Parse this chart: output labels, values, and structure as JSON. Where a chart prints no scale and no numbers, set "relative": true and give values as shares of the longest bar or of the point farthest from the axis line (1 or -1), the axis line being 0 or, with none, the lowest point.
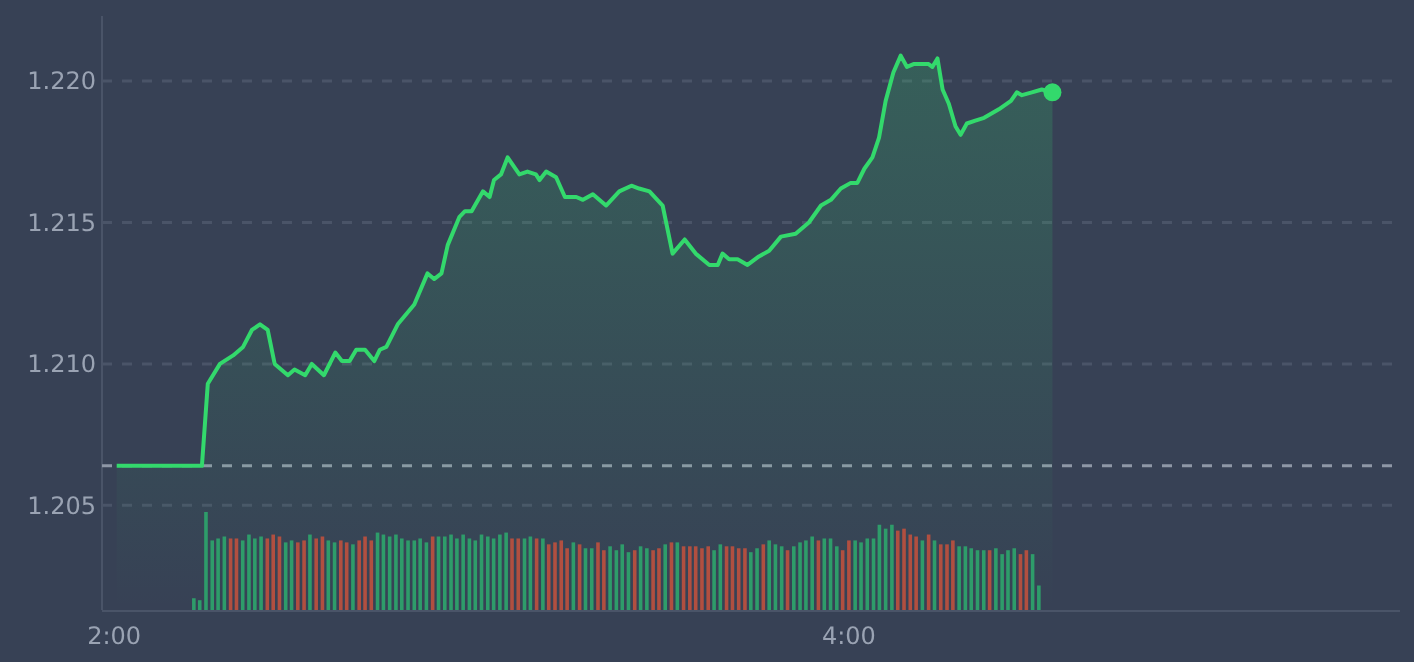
{
  "chart_data": [
    {
      "type": "area",
      "xlim": [
        1.967,
        5.5
      ],
      "ylim": [
        1.2013,
        1.2223
      ],
      "yticks": [
        {
          "value": 1.205,
          "label": "1.205"
        },
        {
          "value": 1.21,
          "label": "1.210"
        },
        {
          "value": 1.215,
          "label": "1.215"
        },
        {
          "value": 1.22,
          "label": "1.220"
        }
      ],
      "grid": "y",
      "tick_labels": "y",
      "ref_lines": [
        {
          "axis": "y",
          "value": 1.2064,
          "color": "#8e97a6",
          "line_style": "dashed"
        }
      ],
      "series": [
        {
          "type": "area",
          "color": "#33d96c",
          "x": [
            2.007,
            2.239,
            2.255,
            2.288,
            2.324,
            2.351,
            2.375,
            2.397,
            2.418,
            2.437,
            2.473,
            2.491,
            2.52,
            2.538,
            2.571,
            2.602,
            2.62,
            2.641,
            2.659,
            2.683,
            2.708,
            2.723,
            2.741,
            2.772,
            2.817,
            2.853,
            2.871,
            2.891,
            2.908,
            2.94,
            2.955,
            2.973,
            3.004,
            3.022,
            3.034,
            3.053,
            3.071,
            3.103,
            3.125,
            3.148,
            3.158,
            3.176,
            3.203,
            3.227,
            3.258,
            3.276,
            3.303,
            3.339,
            3.375,
            3.408,
            3.429,
            3.457,
            3.493,
            3.52,
            3.553,
            3.583,
            3.62,
            3.643,
            3.656,
            3.674,
            3.697,
            3.724,
            3.755,
            3.783,
            3.815,
            3.855,
            3.891,
            3.924,
            3.951,
            3.978,
            4.005,
            4.023,
            4.042,
            4.064,
            4.082,
            4.1,
            4.121,
            4.141,
            4.158,
            4.176,
            4.2,
            4.217,
            4.227,
            4.241,
            4.255,
            4.272,
            4.29,
            4.304,
            4.321,
            4.344,
            4.368,
            4.408,
            4.441,
            4.457,
            4.471,
            4.498,
            4.525,
            4.554
          ],
          "values": [
            1.2064,
            1.2064,
            1.2093,
            1.21,
            1.2103,
            1.2106,
            1.2112,
            1.2114,
            1.2112,
            1.21,
            1.2096,
            1.2098,
            1.2096,
            1.21,
            1.2096,
            1.2104,
            1.2101,
            1.2101,
            1.2105,
            1.2105,
            1.2101,
            1.2105,
            1.2106,
            1.2114,
            1.2121,
            1.2132,
            1.213,
            1.2132,
            1.2142,
            1.2152,
            1.2154,
            1.2154,
            1.2161,
            1.2159,
            1.2165,
            1.2167,
            1.2173,
            1.2167,
            1.2168,
            1.2167,
            1.2165,
            1.2168,
            1.2166,
            1.2159,
            1.2159,
            1.2158,
            1.216,
            1.2156,
            1.2161,
            1.2163,
            1.2162,
            1.2161,
            1.2156,
            1.2139,
            1.2144,
            1.2139,
            1.2135,
            1.2135,
            1.2139,
            1.2137,
            1.2137,
            1.2135,
            1.2138,
            1.214,
            1.2145,
            1.2146,
            1.215,
            1.2156,
            1.2158,
            1.2162,
            1.2164,
            1.2164,
            1.2169,
            1.2173,
            1.218,
            1.2193,
            1.2203,
            1.2209,
            1.2205,
            1.2206,
            1.2206,
            1.2206,
            1.2205,
            1.2208,
            1.2197,
            1.2192,
            1.2184,
            1.2181,
            1.2185,
            1.2186,
            1.2187,
            1.219,
            1.2193,
            1.2196,
            1.2195,
            1.2196,
            1.2197,
            1.2196
          ]
        },
        {
          "type": "scatter",
          "color": "#33d96c",
          "marker": "circle",
          "x": [
            4.554
          ],
          "values": [
            1.2196
          ]
        }
      ]
    },
    {
      "type": "bar",
      "relative": true,
      "xlim": [
        1.967,
        5.5
      ],
      "xticks": [
        {
          "value": 2,
          "label": "2:00"
        },
        {
          "value": 4,
          "label": "4:00"
        }
      ],
      "tick_labels": "x",
      "x": [
        2.217,
        2.233,
        2.25,
        2.267,
        2.283,
        2.3,
        2.317,
        2.333,
        2.35,
        2.367,
        2.383,
        2.4,
        2.417,
        2.433,
        2.45,
        2.467,
        2.483,
        2.5,
        2.517,
        2.533,
        2.55,
        2.567,
        2.583,
        2.6,
        2.617,
        2.633,
        2.65,
        2.667,
        2.683,
        2.7,
        2.717,
        2.733,
        2.75,
        2.767,
        2.783,
        2.8,
        2.817,
        2.833,
        2.85,
        2.867,
        2.883,
        2.9,
        2.917,
        2.933,
        2.95,
        2.967,
        2.983,
        3,
        3.017,
        3.033,
        3.05,
        3.067,
        3.083,
        3.1,
        3.117,
        3.133,
        3.15,
        3.167,
        3.183,
        3.2,
        3.217,
        3.233,
        3.25,
        3.267,
        3.283,
        3.3,
        3.317,
        3.333,
        3.35,
        3.367,
        3.383,
        3.4,
        3.417,
        3.433,
        3.45,
        3.467,
        3.483,
        3.5,
        3.517,
        3.533,
        3.55,
        3.567,
        3.583,
        3.6,
        3.617,
        3.633,
        3.65,
        3.667,
        3.683,
        3.7,
        3.717,
        3.733,
        3.75,
        3.767,
        3.783,
        3.8,
        3.817,
        3.833,
        3.85,
        3.867,
        3.883,
        3.9,
        3.917,
        3.933,
        3.95,
        3.967,
        3.983,
        4,
        4.017,
        4.033,
        4.05,
        4.067,
        4.083,
        4.1,
        4.117,
        4.133,
        4.15,
        4.167,
        4.183,
        4.2,
        4.217,
        4.233,
        4.25,
        4.267,
        4.283,
        4.3,
        4.317,
        4.333,
        4.35,
        4.367,
        4.383,
        4.4,
        4.417,
        4.433,
        4.45,
        4.467,
        4.483,
        4.5,
        4.517
      ],
      "values": [
        0.12,
        0.1,
        1,
        0.71,
        0.73,
        0.75,
        0.73,
        0.73,
        0.71,
        0.77,
        0.73,
        0.75,
        0.73,
        0.77,
        0.75,
        0.69,
        0.71,
        0.69,
        0.71,
        0.77,
        0.73,
        0.75,
        0.71,
        0.69,
        0.71,
        0.69,
        0.67,
        0.71,
        0.75,
        0.71,
        0.79,
        0.77,
        0.75,
        0.77,
        0.73,
        0.71,
        0.71,
        0.73,
        0.69,
        0.75,
        0.75,
        0.75,
        0.77,
        0.73,
        0.77,
        0.73,
        0.71,
        0.77,
        0.75,
        0.73,
        0.77,
        0.79,
        0.73,
        0.73,
        0.73,
        0.75,
        0.73,
        0.73,
        0.67,
        0.69,
        0.71,
        0.63,
        0.69,
        0.67,
        0.63,
        0.63,
        0.69,
        0.61,
        0.65,
        0.61,
        0.67,
        0.59,
        0.61,
        0.65,
        0.63,
        0.61,
        0.63,
        0.67,
        0.69,
        0.69,
        0.65,
        0.65,
        0.65,
        0.63,
        0.65,
        0.61,
        0.67,
        0.65,
        0.65,
        0.63,
        0.63,
        0.59,
        0.63,
        0.67,
        0.71,
        0.67,
        0.65,
        0.61,
        0.65,
        0.69,
        0.71,
        0.75,
        0.71,
        0.73,
        0.73,
        0.65,
        0.61,
        0.71,
        0.71,
        0.69,
        0.73,
        0.73,
        0.87,
        0.83,
        0.87,
        0.81,
        0.83,
        0.77,
        0.75,
        0.71,
        0.77,
        0.71,
        0.67,
        0.67,
        0.71,
        0.65,
        0.65,
        0.63,
        0.61,
        0.61,
        0.61,
        0.63,
        0.57,
        0.61,
        0.63,
        0.57,
        0.61,
        0.57,
        0.25
      ],
      "colors": [
        "#2e9c6a",
        "#2e9c6a",
        "#2e9c6a",
        "#2e9c6a",
        "#2e9c6a",
        "#2e9c6a",
        "#b14f40",
        "#b14f40",
        "#2e9c6a",
        "#2e9c6a",
        "#2e9c6a",
        "#2e9c6a",
        "#b14f40",
        "#b14f40",
        "#b14f40",
        "#2e9c6a",
        "#2e9c6a",
        "#b14f40",
        "#b14f40",
        "#2e9c6a",
        "#b14f40",
        "#b14f40",
        "#2e9c6a",
        "#2e9c6a",
        "#b14f40",
        "#b14f40",
        "#2e9c6a",
        "#b14f40",
        "#b14f40",
        "#b14f40",
        "#2e9c6a",
        "#2e9c6a",
        "#2e9c6a",
        "#2e9c6a",
        "#2e9c6a",
        "#2e9c6a",
        "#2e9c6a",
        "#2e9c6a",
        "#2e9c6a",
        "#b14f40",
        "#2e9c6a",
        "#2e9c6a",
        "#2e9c6a",
        "#2e9c6a",
        "#2e9c6a",
        "#2e9c6a",
        "#2e9c6a",
        "#2e9c6a",
        "#2e9c6a",
        "#2e9c6a",
        "#2e9c6a",
        "#2e9c6a",
        "#b14f40",
        "#b14f40",
        "#2e9c6a",
        "#2e9c6a",
        "#b14f40",
        "#2e9c6a",
        "#b14f40",
        "#b14f40",
        "#b14f40",
        "#b14f40",
        "#2e9c6a",
        "#b14f40",
        "#2e9c6a",
        "#2e9c6a",
        "#b14f40",
        "#b14f40",
        "#2e9c6a",
        "#2e9c6a",
        "#2e9c6a",
        "#2e9c6a",
        "#b14f40",
        "#2e9c6a",
        "#2e9c6a",
        "#b14f40",
        "#b14f40",
        "#2e9c6a",
        "#b14f40",
        "#2e9c6a",
        "#b14f40",
        "#b14f40",
        "#b14f40",
        "#b14f40",
        "#b14f40",
        "#2e9c6a",
        "#2e9c6a",
        "#b14f40",
        "#b14f40",
        "#b14f40",
        "#b14f40",
        "#2e9c6a",
        "#2e9c6a",
        "#b14f40",
        "#2e9c6a",
        "#2e9c6a",
        "#2e9c6a",
        "#b14f40",
        "#2e9c6a",
        "#2e9c6a",
        "#2e9c6a",
        "#2e9c6a",
        "#b14f40",
        "#2e9c6a",
        "#2e9c6a",
        "#2e9c6a",
        "#b14f40",
        "#b14f40",
        "#2e9c6a",
        "#2e9c6a",
        "#2e9c6a",
        "#2e9c6a",
        "#2e9c6a",
        "#2e9c6a",
        "#2e9c6a",
        "#b14f40",
        "#b14f40",
        "#b14f40",
        "#b14f40",
        "#2e9c6a",
        "#b14f40",
        "#2e9c6a",
        "#b14f40",
        "#b14f40",
        "#b14f40",
        "#2e9c6a",
        "#2e9c6a",
        "#2e9c6a",
        "#2e9c6a",
        "#2e9c6a",
        "#b14f40",
        "#2e9c6a",
        "#2e9c6a",
        "#2e9c6a",
        "#2e9c6a",
        "#b14f40",
        "#b14f40",
        "#2e9c6a",
        "#2e9c6a"
      ]
    }
  ]
}
